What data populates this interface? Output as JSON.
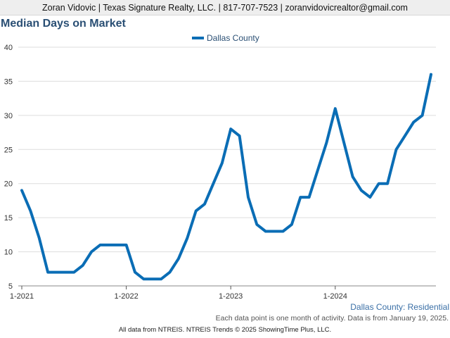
{
  "header": {
    "contact_line": "Zoran Vidovic | Texas Signature Realty, LLC. | 817-707-7523 | zoranvidovicrealtor@gmail.com"
  },
  "title": "Median Days on Market",
  "subtitle": "Dallas County: Residential",
  "note": "Each data point is one month of activity. Data is from January 19, 2025.",
  "footer": "All data from NTREIS. NTREIS Trends © 2025 ShowingTime Plus, LLC.",
  "colors": {
    "series": "#0a6db5",
    "title": "#2a4f74",
    "axis": "#333333",
    "grid": "#dddddd"
  },
  "chart_data": {
    "type": "line",
    "title": "Median Days on Market",
    "xlabel": "",
    "ylabel": "",
    "ylim": [
      5,
      40
    ],
    "yticks": [
      5,
      10,
      15,
      20,
      25,
      30,
      35,
      40
    ],
    "xticks": [
      {
        "label": "1-2021",
        "month_index": 0
      },
      {
        "label": "1-2022",
        "month_index": 12
      },
      {
        "label": "1-2023",
        "month_index": 24
      },
      {
        "label": "1-2024",
        "month_index": 36
      }
    ],
    "grid": true,
    "legend": "top-center",
    "series": [
      {
        "name": "Dallas County",
        "x": [
          "1-2021",
          "2-2021",
          "3-2021",
          "4-2021",
          "5-2021",
          "6-2021",
          "7-2021",
          "8-2021",
          "9-2021",
          "10-2021",
          "11-2021",
          "12-2021",
          "1-2022",
          "2-2022",
          "3-2022",
          "4-2022",
          "5-2022",
          "6-2022",
          "7-2022",
          "8-2022",
          "9-2022",
          "10-2022",
          "11-2022",
          "12-2022",
          "1-2023",
          "2-2023",
          "3-2023",
          "4-2023",
          "5-2023",
          "6-2023",
          "7-2023",
          "8-2023",
          "9-2023",
          "10-2023",
          "11-2023",
          "12-2023",
          "1-2024",
          "2-2024",
          "3-2024",
          "4-2024",
          "5-2024",
          "6-2024",
          "7-2024",
          "8-2024",
          "9-2024",
          "10-2024",
          "11-2024",
          "12-2024"
        ],
        "values": [
          19,
          16,
          12,
          7,
          7,
          7,
          7,
          8,
          10,
          11,
          11,
          11,
          11,
          7,
          6,
          6,
          6,
          7,
          9,
          12,
          16,
          17,
          20,
          23,
          28,
          27,
          18,
          14,
          13,
          13,
          13,
          14,
          18,
          18,
          22,
          26,
          31,
          26,
          21,
          19,
          18,
          20,
          20,
          25,
          27,
          29,
          30,
          36
        ]
      }
    ]
  }
}
